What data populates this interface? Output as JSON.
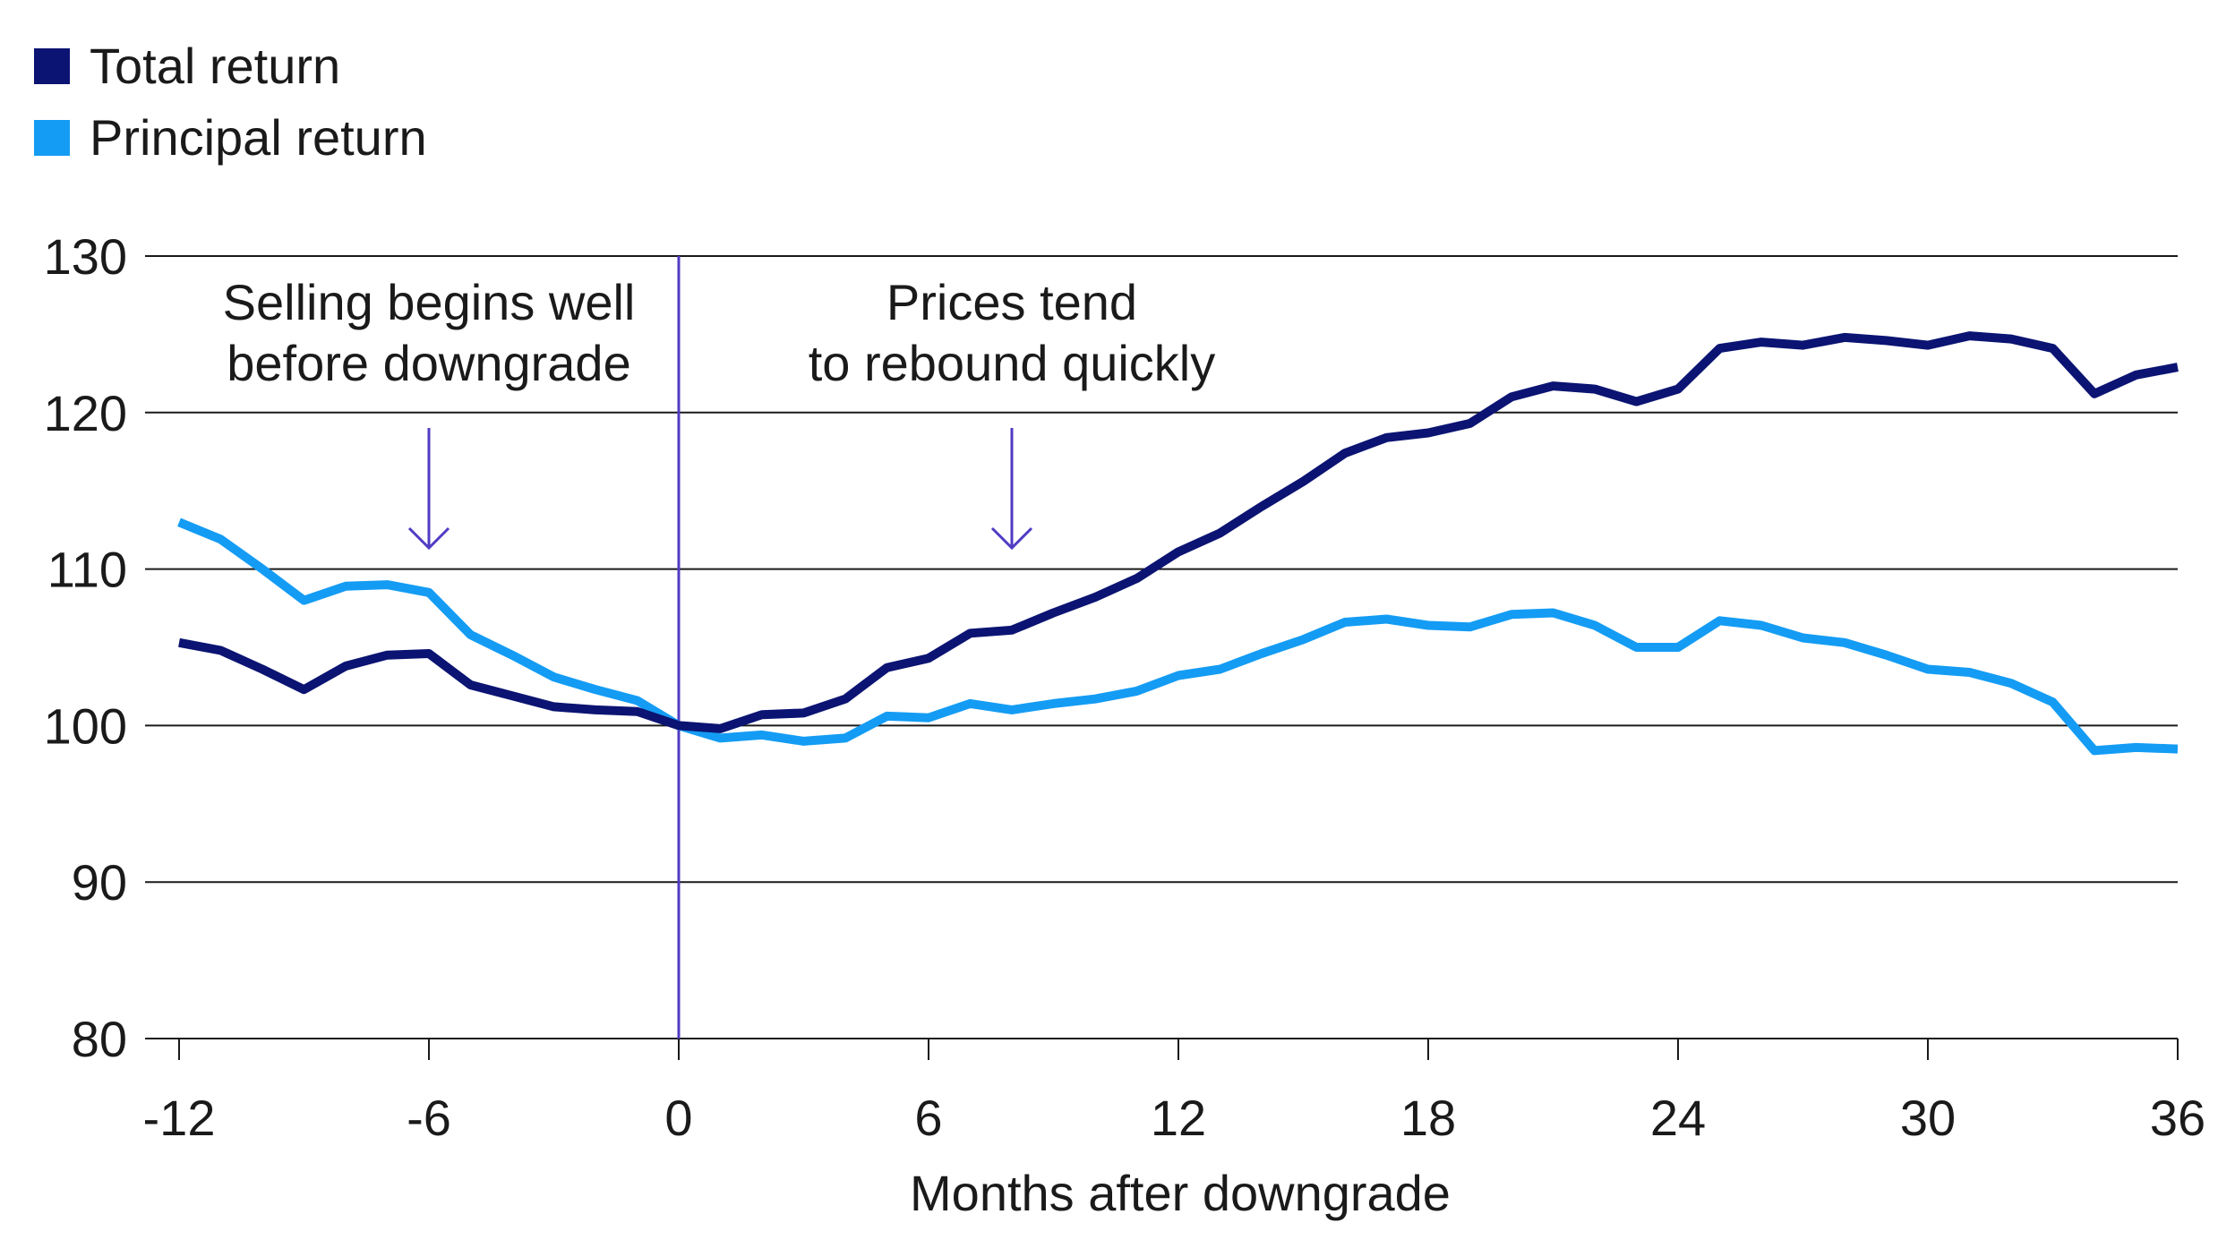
{
  "legend": [
    {
      "label": "Total return",
      "color": "#0b1472"
    },
    {
      "label": "Principal return",
      "color": "#149cf4"
    }
  ],
  "chart_data": {
    "type": "line",
    "xlabel": "Months after downgrade",
    "ylabel": "",
    "xlim": [
      -12,
      36
    ],
    "ylim": [
      80,
      130
    ],
    "xticks": [
      -12,
      -6,
      0,
      6,
      12,
      18,
      24,
      30,
      36
    ],
    "yticks": [
      80,
      90,
      100,
      110,
      120,
      130
    ],
    "x": [
      -12,
      -11,
      -10,
      -9,
      -8,
      -7,
      -6,
      -5,
      -4,
      -3,
      -2,
      -1,
      0,
      1,
      2,
      3,
      4,
      5,
      6,
      7,
      8,
      9,
      10,
      11,
      12,
      13,
      14,
      15,
      16,
      17,
      18,
      19,
      20,
      21,
      22,
      23,
      24,
      25,
      26,
      27,
      28,
      29,
      30,
      31,
      32,
      33,
      34,
      35,
      36
    ],
    "series": [
      {
        "name": "Total return",
        "color": "#0b1472",
        "values": [
          105.3,
          104.8,
          103.6,
          102.3,
          103.8,
          104.5,
          104.6,
          102.6,
          101.9,
          101.2,
          101.0,
          100.9,
          100.0,
          99.8,
          100.7,
          100.8,
          101.7,
          103.7,
          104.3,
          105.9,
          106.1,
          107.2,
          108.2,
          109.4,
          111.1,
          112.3,
          114.0,
          115.6,
          117.4,
          118.4,
          118.7,
          119.3,
          121.0,
          121.7,
          121.5,
          120.7,
          121.5,
          124.1,
          124.5,
          124.3,
          124.8,
          124.6,
          124.3,
          124.9,
          124.7,
          124.1,
          121.2,
          122.4,
          122.9
        ]
      },
      {
        "name": "Principal return",
        "color": "#149cf4",
        "values": [
          113.0,
          111.9,
          110.0,
          108.0,
          108.9,
          109.0,
          108.5,
          105.8,
          104.5,
          103.1,
          102.3,
          101.6,
          100.0,
          99.2,
          99.4,
          99.0,
          99.2,
          100.6,
          100.5,
          101.4,
          101.0,
          101.4,
          101.7,
          102.2,
          103.2,
          103.6,
          104.6,
          105.5,
          106.6,
          106.8,
          106.4,
          106.3,
          107.1,
          107.2,
          106.4,
          105.0,
          105.0,
          106.7,
          106.4,
          105.6,
          105.3,
          104.5,
          103.6,
          103.4,
          102.7,
          101.5,
          98.4,
          98.6,
          98.5
        ]
      }
    ],
    "vline": {
      "x": 0,
      "color": "#4f3bc4"
    },
    "annotations": [
      {
        "id": "selling",
        "lines": [
          "Selling begins well",
          "before downgrade"
        ],
        "x": -6
      },
      {
        "id": "rebound",
        "lines": [
          "Prices tend",
          "to rebound quickly"
        ],
        "x": 8
      }
    ],
    "grid": "horizontal"
  }
}
